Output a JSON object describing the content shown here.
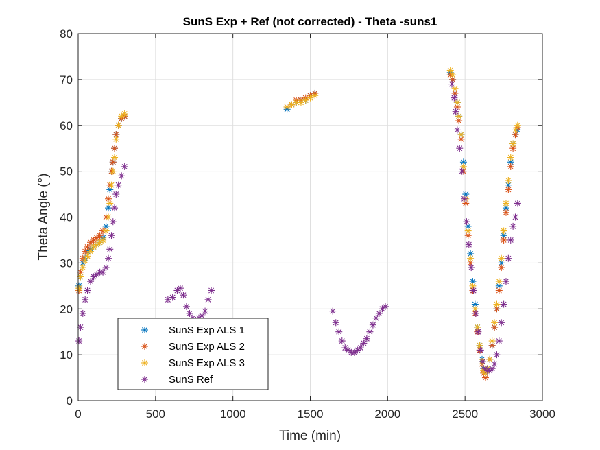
{
  "chart_data": {
    "type": "scatter",
    "title": "SunS Exp + Ref (not corrected) - Theta -suns1",
    "xlabel": "Time (min)",
    "ylabel": "Theta Angle (°)",
    "xlim": [
      0,
      3000
    ],
    "ylim": [
      0,
      80
    ],
    "xticks": [
      0,
      500,
      1000,
      1500,
      2000,
      2500,
      3000
    ],
    "yticks": [
      0,
      10,
      20,
      30,
      40,
      50,
      60,
      70,
      80
    ],
    "xtick_labels": [
      "0",
      "500",
      "1000",
      "1500",
      "2000",
      "2500",
      "3000"
    ],
    "ytick_labels": [
      "0",
      "10",
      "20",
      "30",
      "40",
      "50",
      "60",
      "70",
      "80"
    ],
    "grid": true,
    "legend_position": "bottom-left",
    "marker": "asterisk",
    "series": [
      {
        "name": "SunS Exp ALS 1",
        "color": "#0072BD",
        "points": [
          [
            5,
            25
          ],
          [
            15,
            27
          ],
          [
            30,
            30
          ],
          [
            45,
            31
          ],
          [
            60,
            32.5
          ],
          [
            80,
            33
          ],
          [
            100,
            33.5
          ],
          [
            120,
            34
          ],
          [
            140,
            34.5
          ],
          [
            160,
            35.5
          ],
          [
            180,
            38
          ],
          [
            195,
            42
          ],
          [
            205,
            46
          ],
          [
            215,
            50
          ],
          [
            225,
            52
          ],
          [
            235,
            55
          ],
          [
            245,
            58
          ],
          [
            260,
            60
          ],
          [
            280,
            61.5
          ],
          [
            300,
            62
          ],
          [
            1350,
            63.5
          ],
          [
            1380,
            64.5
          ],
          [
            1410,
            65
          ],
          [
            1440,
            65.5
          ],
          [
            1470,
            65.5
          ],
          [
            1500,
            66.5
          ],
          [
            1530,
            67
          ],
          [
            2405,
            71.5
          ],
          [
            2420,
            70
          ],
          [
            2435,
            67
          ],
          [
            2450,
            65
          ],
          [
            2460,
            62
          ],
          [
            2475,
            58
          ],
          [
            2490,
            52
          ],
          [
            2505,
            45
          ],
          [
            2520,
            38
          ],
          [
            2535,
            32
          ],
          [
            2550,
            26
          ],
          [
            2565,
            21
          ],
          [
            2580,
            16
          ],
          [
            2595,
            12
          ],
          [
            2610,
            9
          ],
          [
            2620,
            7
          ],
          [
            2632,
            6
          ],
          [
            2645,
            7
          ],
          [
            2660,
            9
          ],
          [
            2675,
            12
          ],
          [
            2690,
            16
          ],
          [
            2705,
            20
          ],
          [
            2720,
            25
          ],
          [
            2735,
            30
          ],
          [
            2750,
            36
          ],
          [
            2765,
            42
          ],
          [
            2780,
            47
          ],
          [
            2795,
            52
          ],
          [
            2810,
            56
          ],
          [
            2825,
            58
          ],
          [
            2840,
            59
          ]
        ]
      },
      {
        "name": "SunS Exp ALS 2",
        "color": "#D95319",
        "points": [
          [
            5,
            24
          ],
          [
            15,
            28
          ],
          [
            30,
            31
          ],
          [
            45,
            32.5
          ],
          [
            60,
            33.5
          ],
          [
            80,
            34.5
          ],
          [
            100,
            35
          ],
          [
            120,
            35.5
          ],
          [
            140,
            36
          ],
          [
            160,
            37
          ],
          [
            180,
            40
          ],
          [
            195,
            44
          ],
          [
            205,
            47
          ],
          [
            215,
            50
          ],
          [
            225,
            52
          ],
          [
            235,
            55
          ],
          [
            245,
            58
          ],
          [
            260,
            60
          ],
          [
            280,
            61.5
          ],
          [
            300,
            62
          ],
          [
            1350,
            64
          ],
          [
            1380,
            64.5
          ],
          [
            1410,
            65.5
          ],
          [
            1440,
            65.5
          ],
          [
            1470,
            66
          ],
          [
            1500,
            66.5
          ],
          [
            1530,
            67
          ],
          [
            2405,
            71
          ],
          [
            2420,
            70
          ],
          [
            2435,
            67
          ],
          [
            2450,
            64
          ],
          [
            2460,
            61
          ],
          [
            2475,
            57
          ],
          [
            2490,
            50
          ],
          [
            2505,
            43
          ],
          [
            2520,
            36
          ],
          [
            2535,
            30
          ],
          [
            2550,
            24
          ],
          [
            2565,
            19
          ],
          [
            2580,
            15
          ],
          [
            2595,
            11
          ],
          [
            2610,
            8
          ],
          [
            2620,
            6
          ],
          [
            2632,
            5
          ],
          [
            2645,
            6.5
          ],
          [
            2660,
            9
          ],
          [
            2675,
            12
          ],
          [
            2690,
            16
          ],
          [
            2705,
            20
          ],
          [
            2720,
            24
          ],
          [
            2735,
            29
          ],
          [
            2750,
            35
          ],
          [
            2765,
            41
          ],
          [
            2780,
            46
          ],
          [
            2795,
            51
          ],
          [
            2810,
            55
          ],
          [
            2825,
            58
          ],
          [
            2840,
            59.5
          ]
        ]
      },
      {
        "name": "SunS Exp ALS 3",
        "color": "#EDB120",
        "points": [
          [
            5,
            24.5
          ],
          [
            15,
            27
          ],
          [
            30,
            29
          ],
          [
            45,
            30.5
          ],
          [
            60,
            31.5
          ],
          [
            80,
            32.5
          ],
          [
            100,
            33.5
          ],
          [
            120,
            34
          ],
          [
            140,
            34.5
          ],
          [
            160,
            35
          ],
          [
            180,
            37
          ],
          [
            195,
            40
          ],
          [
            205,
            43
          ],
          [
            215,
            47
          ],
          [
            225,
            50
          ],
          [
            235,
            53
          ],
          [
            245,
            57
          ],
          [
            260,
            60
          ],
          [
            280,
            62
          ],
          [
            300,
            62.5
          ],
          [
            1350,
            64
          ],
          [
            1380,
            64.5
          ],
          [
            1410,
            65
          ],
          [
            1440,
            65
          ],
          [
            1470,
            65.5
          ],
          [
            1500,
            66
          ],
          [
            1530,
            66.5
          ],
          [
            2405,
            72
          ],
          [
            2420,
            71
          ],
          [
            2435,
            68
          ],
          [
            2450,
            65
          ],
          [
            2460,
            62
          ],
          [
            2475,
            58
          ],
          [
            2490,
            51
          ],
          [
            2505,
            44
          ],
          [
            2520,
            37
          ],
          [
            2535,
            31
          ],
          [
            2550,
            25
          ],
          [
            2565,
            20
          ],
          [
            2580,
            16
          ],
          [
            2595,
            12
          ],
          [
            2610,
            8.5
          ],
          [
            2620,
            6.5
          ],
          [
            2632,
            6
          ],
          [
            2645,
            7
          ],
          [
            2660,
            9
          ],
          [
            2675,
            13
          ],
          [
            2690,
            17
          ],
          [
            2705,
            21
          ],
          [
            2720,
            26
          ],
          [
            2735,
            31
          ],
          [
            2750,
            37
          ],
          [
            2765,
            43
          ],
          [
            2780,
            48
          ],
          [
            2795,
            53
          ],
          [
            2810,
            56
          ],
          [
            2825,
            59
          ],
          [
            2840,
            60
          ]
        ]
      },
      {
        "name": "SunS Ref",
        "color": "#7E2F8E",
        "points": [
          [
            5,
            13
          ],
          [
            15,
            16
          ],
          [
            30,
            19
          ],
          [
            45,
            22
          ],
          [
            60,
            24
          ],
          [
            80,
            26
          ],
          [
            100,
            27
          ],
          [
            120,
            27.5
          ],
          [
            140,
            28
          ],
          [
            160,
            28
          ],
          [
            180,
            29
          ],
          [
            195,
            31
          ],
          [
            205,
            33
          ],
          [
            215,
            36
          ],
          [
            225,
            39
          ],
          [
            235,
            42
          ],
          [
            245,
            45
          ],
          [
            260,
            47
          ],
          [
            280,
            49
          ],
          [
            300,
            51
          ],
          [
            580,
            22
          ],
          [
            610,
            22.5
          ],
          [
            640,
            24
          ],
          [
            660,
            24.5
          ],
          [
            680,
            23
          ],
          [
            700,
            20.5
          ],
          [
            720,
            19
          ],
          [
            740,
            18
          ],
          [
            760,
            17.5
          ],
          [
            780,
            18
          ],
          [
            800,
            18.5
          ],
          [
            820,
            19.5
          ],
          [
            840,
            22
          ],
          [
            860,
            24
          ],
          [
            1645,
            19.5
          ],
          [
            1665,
            17
          ],
          [
            1685,
            15
          ],
          [
            1705,
            13
          ],
          [
            1725,
            11.5
          ],
          [
            1745,
            11
          ],
          [
            1765,
            10.5
          ],
          [
            1785,
            10.5
          ],
          [
            1805,
            11
          ],
          [
            1825,
            11.5
          ],
          [
            1845,
            12.5
          ],
          [
            1865,
            13.5
          ],
          [
            1885,
            15
          ],
          [
            1905,
            16.5
          ],
          [
            1925,
            18
          ],
          [
            1945,
            19
          ],
          [
            1965,
            20
          ],
          [
            1985,
            20.5
          ],
          [
            2415,
            69
          ],
          [
            2430,
            66
          ],
          [
            2440,
            63
          ],
          [
            2450,
            59
          ],
          [
            2465,
            55
          ],
          [
            2480,
            50
          ],
          [
            2495,
            44
          ],
          [
            2510,
            39
          ],
          [
            2525,
            34
          ],
          [
            2540,
            29
          ],
          [
            2555,
            24
          ],
          [
            2570,
            19
          ],
          [
            2585,
            15
          ],
          [
            2600,
            11
          ],
          [
            2615,
            8.5
          ],
          [
            2630,
            7
          ],
          [
            2645,
            6.5
          ],
          [
            2660,
            6.5
          ],
          [
            2675,
            7
          ],
          [
            2690,
            8
          ],
          [
            2705,
            10
          ],
          [
            2720,
            13
          ],
          [
            2735,
            17
          ],
          [
            2750,
            21
          ],
          [
            2765,
            26
          ],
          [
            2780,
            31
          ],
          [
            2795,
            35
          ],
          [
            2810,
            38
          ],
          [
            2825,
            40
          ],
          [
            2840,
            43
          ]
        ]
      }
    ]
  }
}
